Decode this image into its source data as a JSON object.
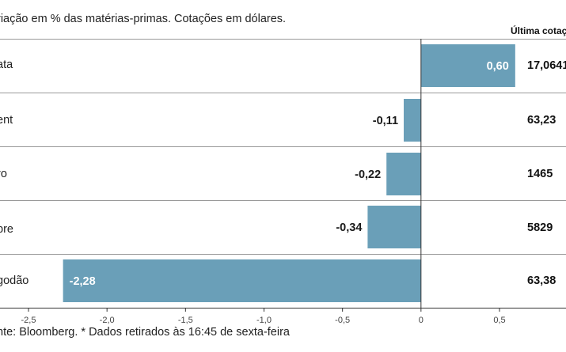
{
  "subtitle": "riação em % das matérias-primas. Cotações em dólares.",
  "last_header": "Última cotaç",
  "footer": "nte: Bloomberg.  * Dados retirados às 16:45 de sexta-feira",
  "colors": {
    "bar": "#6a9fb8",
    "rule": "#9a9a9a",
    "axis": "#333333"
  },
  "rows": [
    {
      "label": "ata",
      "value_text": "0,60",
      "last": "17,0641"
    },
    {
      "label": "ent",
      "value_text": "-0,11",
      "last": "63,23"
    },
    {
      "label": "ro",
      "value_text": "-0,22",
      "last": "1465"
    },
    {
      "label": "bre",
      "value_text": "-0,34",
      "last": "5829"
    },
    {
      "label": "godão",
      "value_text": "-2,28",
      "last": "63,38"
    }
  ],
  "chart_data": {
    "type": "bar",
    "orientation": "horizontal",
    "title": "riação em % das matérias-primas. Cotações em dólares.",
    "categories": [
      "ata",
      "ent",
      "ro",
      "bre",
      "godão"
    ],
    "values": [
      0.6,
      -0.11,
      -0.22,
      -0.34,
      -2.28
    ],
    "xlim": [
      -2.5,
      0.5
    ],
    "xticks": [
      -2.5,
      -2.0,
      -1.5,
      -1.0,
      -0.5,
      0,
      0.5
    ],
    "xtick_labels": [
      "-2,5",
      "-2,0",
      "-1,5",
      "-1,0",
      "-0,5",
      "0",
      "0,5"
    ],
    "xlabel": "",
    "ylabel": ""
  }
}
